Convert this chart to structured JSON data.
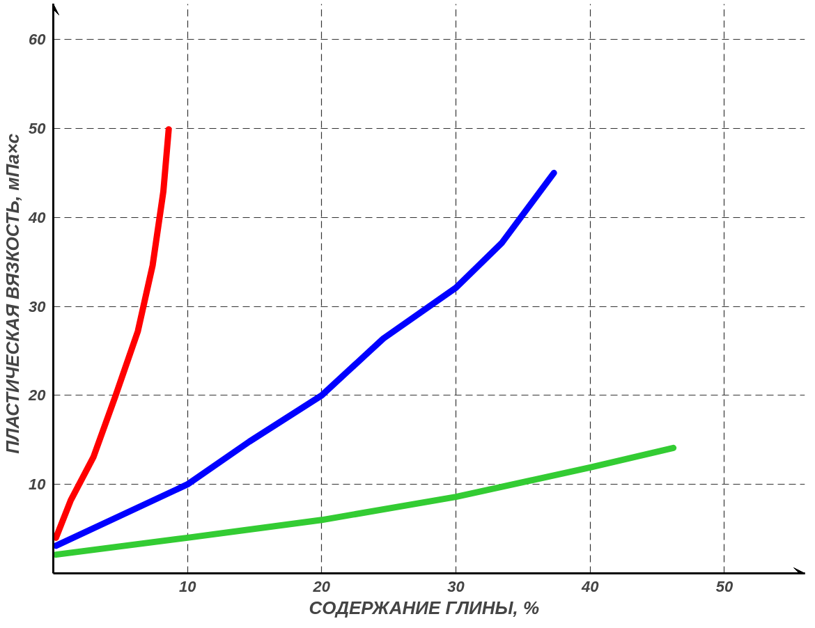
{
  "chart_data": {
    "type": "line",
    "xlabel": "СОДЕРЖАНИЕ  ГЛИНЫ,  %",
    "ylabel": "ПЛАСТИЧЕСКАЯ  ВЯЗКОСТЬ,  мПа×с",
    "xlim": [
      0,
      56
    ],
    "ylim": [
      0,
      64
    ],
    "xticks": [
      10,
      20,
      30,
      40,
      50
    ],
    "yticks": [
      10,
      20,
      30,
      40,
      50,
      60
    ],
    "grid": true,
    "line_style": "solid",
    "series": [
      {
        "color": "#ff0000",
        "x": [
          0.2,
          1.3,
          3.0,
          4.6,
          6.3,
          7.4,
          8.2,
          8.6
        ],
        "values": [
          4.0,
          8.2,
          13.1,
          19.8,
          27.2,
          34.6,
          42.9,
          49.9
        ]
      },
      {
        "color": "#0000ff",
        "x": [
          0.2,
          10,
          14.6,
          20,
          24.6,
          30,
          33.4,
          37.3
        ],
        "values": [
          3.1,
          10,
          14.8,
          20,
          26.4,
          32.1,
          37.1,
          45
        ]
      },
      {
        "color": "#33cc33",
        "x": [
          0.2,
          10,
          20,
          30,
          40,
          46.2
        ],
        "values": [
          2.1,
          4.0,
          6.0,
          8.6,
          11.9,
          14.1
        ]
      }
    ]
  }
}
